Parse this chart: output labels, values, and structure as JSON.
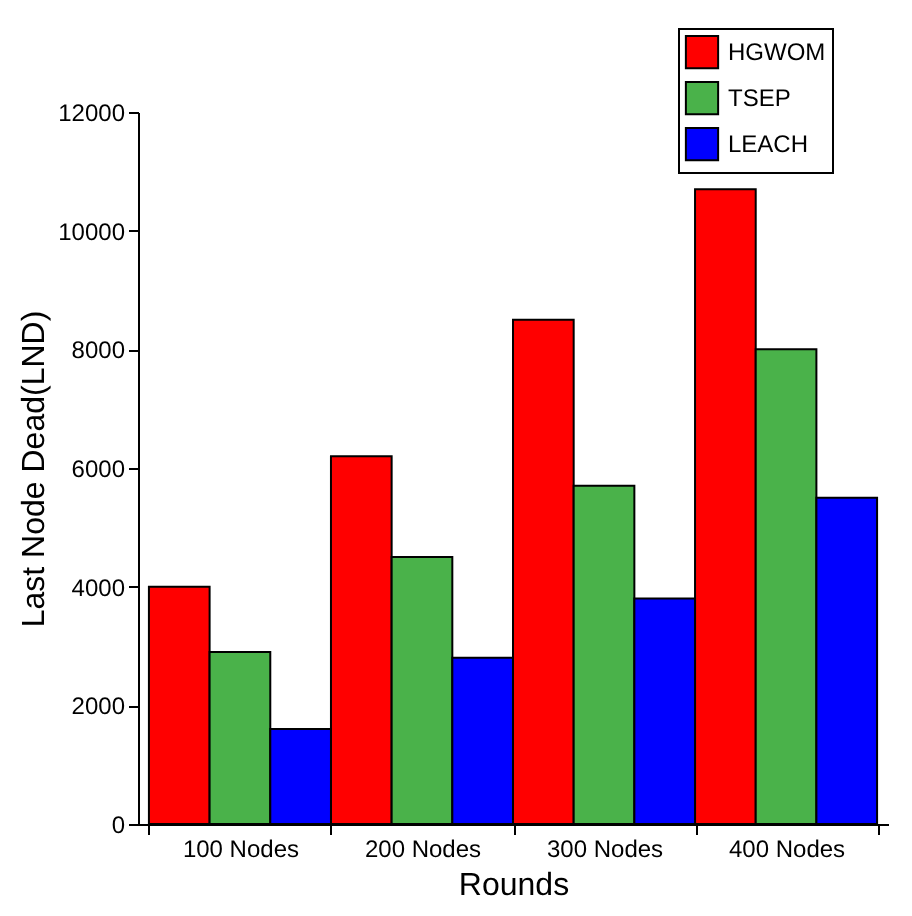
{
  "chart_data": {
    "type": "bar",
    "xlabel": "Rounds",
    "ylabel": "Last Node Dead(LND)",
    "categories": [
      "100 Nodes",
      "200 Nodes",
      "300 Nodes",
      "400 Nodes"
    ],
    "series": [
      {
        "name": "HGWOM",
        "color": "#ff0000",
        "values": [
          4000,
          6200,
          8500,
          10700
        ]
      },
      {
        "name": "TSEP",
        "color": "#4ab24a",
        "values": [
          2900,
          4500,
          5700,
          8000
        ]
      },
      {
        "name": "LEACH",
        "color": "#0000ff",
        "values": [
          1600,
          2800,
          3800,
          5500
        ]
      }
    ],
    "ylim": [
      0,
      12000
    ],
    "yticks": [
      0,
      2000,
      4000,
      6000,
      8000,
      10000,
      12000
    ],
    "grid": false,
    "legend": "top right"
  }
}
